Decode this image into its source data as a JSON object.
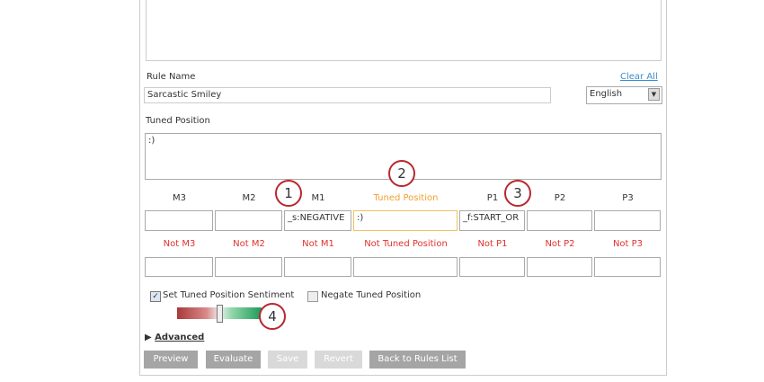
{
  "form": {
    "rule_name_label": "Rule Name",
    "clear_all": "Clear All",
    "rule_name_value": "Sarcastic Smiley",
    "language": "English",
    "tuned_position_label": "Tuned Position",
    "tuned_position_value": ":)",
    "columns": [
      {
        "label": "M3"
      },
      {
        "label": "M2"
      },
      {
        "label": "M1",
        "value": "_s:NEGATIVE"
      },
      {
        "label": "Tuned Position",
        "value": ":)"
      },
      {
        "label": "P1",
        "value": "_f:START_OR"
      },
      {
        "label": "P2"
      },
      {
        "label": "P3"
      }
    ],
    "not_columns": [
      {
        "label": "Not M3"
      },
      {
        "label": "Not M2"
      },
      {
        "label": "Not M1"
      },
      {
        "label": "Not Tuned Position"
      },
      {
        "label": "Not P1"
      },
      {
        "label": "Not P2"
      },
      {
        "label": "Not P3"
      }
    ],
    "set_sentiment": "Set Tuned Position Sentiment",
    "negate": "Negate Tuned Position",
    "advanced": "Advanced",
    "buttons": [
      "Preview",
      "Evaluate",
      "Save",
      "Revert",
      "Back to Rules List"
    ]
  },
  "callouts": [
    "1",
    "2",
    "3",
    "4"
  ]
}
